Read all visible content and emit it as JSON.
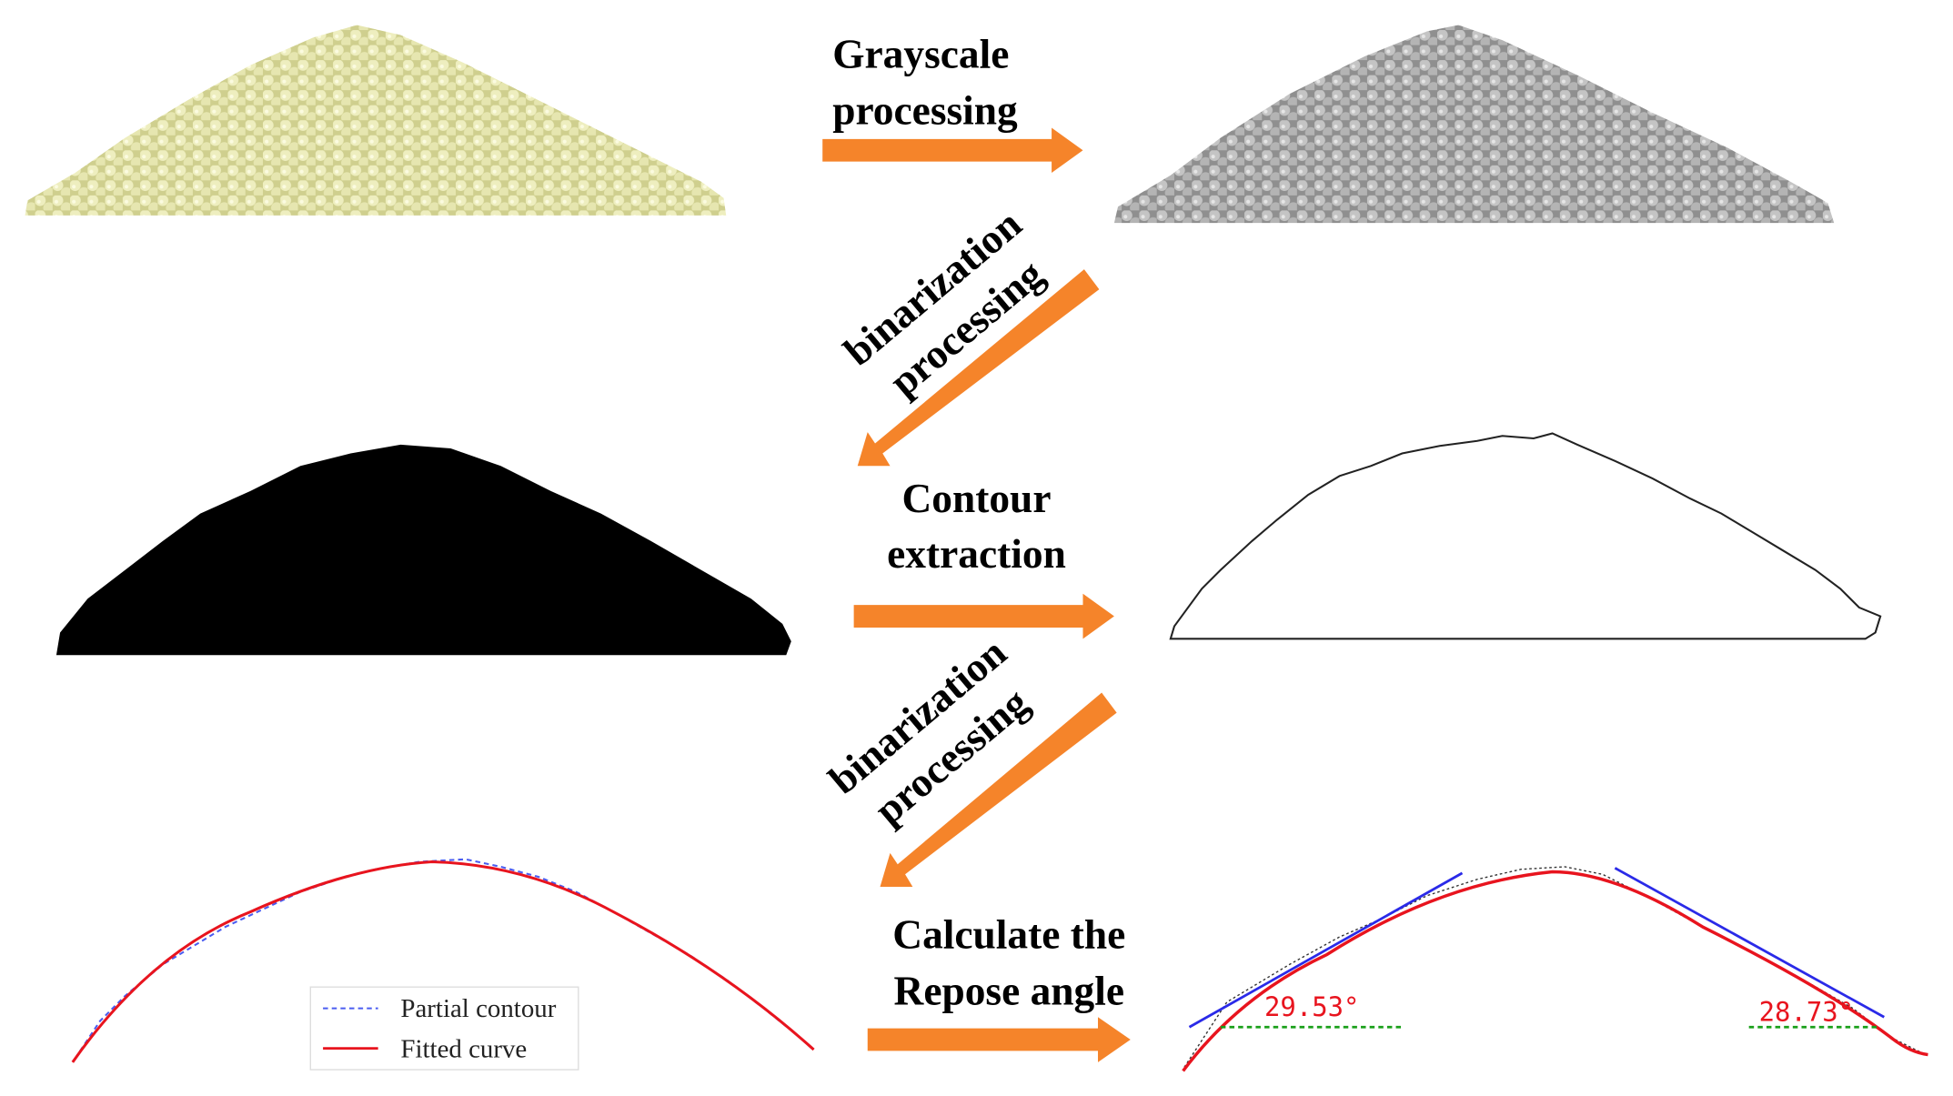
{
  "arrows": [
    {
      "lines": [
        "Grayscale",
        "processing"
      ]
    },
    {
      "lines": [
        "binarization",
        "processing"
      ]
    },
    {
      "lines": [
        "Contour",
        "extraction"
      ]
    },
    {
      "lines": [
        "binarization",
        "processing"
      ]
    },
    {
      "lines": [
        "Calculate the",
        "Repose angle"
      ]
    }
  ],
  "legend": [
    "Partial contour",
    "Fitted curve"
  ],
  "angles": [
    "29.53°",
    "28.73°"
  ]
}
